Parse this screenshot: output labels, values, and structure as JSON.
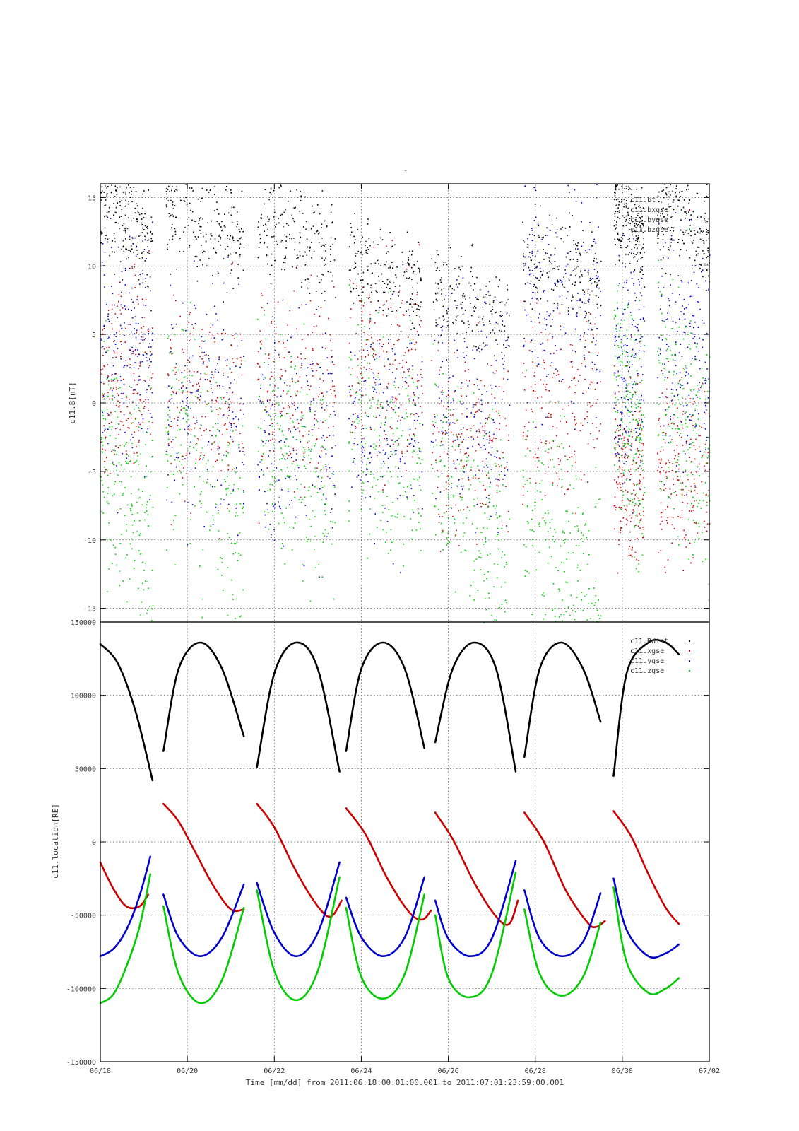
{
  "page": {
    "title_mark": "-",
    "xlabel": "Time [mm/dd]  from 2011:06:18:00:01:00.001  to  2011:07:01:23:59:00.001"
  },
  "colors": {
    "black": "#000000",
    "red": "#cc0000",
    "blue": "#0000cc",
    "green": "#00cc00",
    "grid": "#444444"
  },
  "chart_data": [
    {
      "type": "scatter",
      "ylabel": "c11.B[nT]",
      "xlim": [
        "06/18",
        "07/02"
      ],
      "ylim": [
        -16,
        16
      ],
      "yticks": [
        15,
        10,
        5,
        0,
        -5,
        -10,
        -15
      ],
      "xticks": [
        "06/18",
        "06/20",
        "06/22",
        "06/24",
        "06/26",
        "06/28",
        "06/30",
        "07/02"
      ],
      "grid": true,
      "legend_position": "top-right",
      "data_gaps_days": [
        [
          1.2,
          1.5
        ],
        [
          3.3,
          3.6
        ],
        [
          5.4,
          5.7
        ],
        [
          7.4,
          7.6
        ],
        [
          9.4,
          9.7
        ],
        [
          11.5,
          11.8
        ],
        [
          12.5,
          12.8
        ]
      ],
      "series": [
        {
          "name": "c11.bt",
          "color": "black",
          "center": [
            14,
            14,
            13,
            10,
            8,
            11,
            14
          ],
          "spread": 3
        },
        {
          "name": "c11.bxgse",
          "color": "red",
          "center": [
            2,
            0,
            1,
            3,
            -3,
            0,
            -5
          ],
          "spread": 6
        },
        {
          "name": "c11.bygse",
          "color": "blue",
          "center": [
            4,
            0,
            -2,
            -1,
            0,
            8,
            3
          ],
          "spread": 7
        },
        {
          "name": "c11.bzgse",
          "color": "green",
          "center": [
            -5,
            -4,
            -3,
            -2,
            -6,
            -9,
            0
          ],
          "spread": 7
        }
      ]
    },
    {
      "type": "line",
      "ylabel": "c11.location[RE]",
      "xlim": [
        "06/18",
        "07/02"
      ],
      "ylim": [
        -150000,
        150000
      ],
      "yticks": [
        150000,
        100000,
        50000,
        0,
        -50000,
        -100000,
        -150000
      ],
      "xticks": [
        "06/18",
        "06/20",
        "06/22",
        "06/24",
        "06/26",
        "06/28",
        "06/30",
        "07/02"
      ],
      "grid": true,
      "legend_position": "top-right",
      "series": [
        {
          "name": "c11.Rdist",
          "color": "black",
          "segments": [
            {
              "x": [
                0.0,
                0.4,
                0.8,
                1.2
              ],
              "y": [
                135000,
                122000,
                90000,
                42000
              ]
            },
            {
              "x": [
                1.45,
                1.8,
                2.3,
                2.8,
                3.3
              ],
              "y": [
                62000,
                118000,
                136000,
                118000,
                72000
              ]
            },
            {
              "x": [
                3.6,
                4.0,
                4.5,
                5.0,
                5.5
              ],
              "y": [
                51000,
                115000,
                136000,
                118000,
                48000
              ]
            },
            {
              "x": [
                5.65,
                6.0,
                6.5,
                7.0,
                7.45
              ],
              "y": [
                62000,
                118000,
                136000,
                118000,
                64000
              ]
            },
            {
              "x": [
                7.7,
                8.1,
                8.6,
                9.1,
                9.55
              ],
              "y": [
                68000,
                118000,
                136000,
                118000,
                48000
              ]
            },
            {
              "x": [
                9.75,
                10.1,
                10.6,
                11.1,
                11.5
              ],
              "y": [
                58000,
                118000,
                136000,
                118000,
                82000
              ]
            },
            {
              "x": [
                11.8,
                12.1,
                12.6,
                13.0,
                13.3
              ],
              "y": [
                45000,
                115000,
                136000,
                136000,
                128000
              ]
            }
          ]
        },
        {
          "name": "c11.xgse",
          "color": "red",
          "segments": [
            {
              "x": [
                0.0,
                0.3,
                0.6,
                0.9,
                1.1
              ],
              "y": [
                -14000,
                -32000,
                -44000,
                -44000,
                -36000
              ]
            },
            {
              "x": [
                1.45,
                1.8,
                2.2,
                2.6,
                3.0,
                3.3
              ],
              "y": [
                26000,
                14000,
                -8000,
                -30000,
                -46000,
                -46000
              ]
            },
            {
              "x": [
                3.6,
                4.0,
                4.5,
                5.0,
                5.3,
                5.55
              ],
              "y": [
                26000,
                10000,
                -20000,
                -44000,
                -51000,
                -40000
              ]
            },
            {
              "x": [
                5.65,
                6.1,
                6.6,
                7.1,
                7.4,
                7.6
              ],
              "y": [
                23000,
                5000,
                -25000,
                -48000,
                -53000,
                -47000
              ]
            },
            {
              "x": [
                7.7,
                8.1,
                8.6,
                9.1,
                9.4,
                9.6
              ],
              "y": [
                20000,
                2000,
                -28000,
                -51000,
                -56000,
                -40000
              ]
            },
            {
              "x": [
                9.75,
                10.2,
                10.7,
                11.2,
                11.4,
                11.6
              ],
              "y": [
                20000,
                0,
                -33000,
                -55000,
                -58000,
                -54000
              ]
            },
            {
              "x": [
                11.8,
                12.2,
                12.6,
                13.0,
                13.3
              ],
              "y": [
                21000,
                4000,
                -22000,
                -45000,
                -56000
              ]
            }
          ]
        },
        {
          "name": "c11.ygse",
          "color": "blue",
          "segments": [
            {
              "x": [
                0.0,
                0.3,
                0.6,
                0.9,
                1.15
              ],
              "y": [
                -78000,
                -73000,
                -60000,
                -37000,
                -10000
              ]
            },
            {
              "x": [
                1.45,
                1.8,
                2.3,
                2.8,
                3.3
              ],
              "y": [
                -36000,
                -65000,
                -78000,
                -65000,
                -29000
              ]
            },
            {
              "x": [
                3.6,
                4.0,
                4.5,
                5.0,
                5.5
              ],
              "y": [
                -28000,
                -62000,
                -78000,
                -62000,
                -14000
              ]
            },
            {
              "x": [
                5.65,
                6.0,
                6.5,
                7.0,
                7.45
              ],
              "y": [
                -38000,
                -65000,
                -78000,
                -65000,
                -24000
              ]
            },
            {
              "x": [
                7.7,
                8.0,
                8.5,
                9.0,
                9.55
              ],
              "y": [
                -40000,
                -66000,
                -78000,
                -66000,
                -13000
              ]
            },
            {
              "x": [
                9.75,
                10.1,
                10.6,
                11.1,
                11.5
              ],
              "y": [
                -33000,
                -66000,
                -78000,
                -68000,
                -35000
              ]
            },
            {
              "x": [
                11.8,
                12.1,
                12.6,
                13.0,
                13.3
              ],
              "y": [
                -25000,
                -60000,
                -78000,
                -76000,
                -70000
              ]
            }
          ]
        },
        {
          "name": "c11.zgse",
          "color": "green",
          "segments": [
            {
              "x": [
                0.0,
                0.3,
                0.6,
                0.9,
                1.15
              ],
              "y": [
                -110000,
                -104000,
                -85000,
                -58000,
                -22000
              ]
            },
            {
              "x": [
                1.45,
                1.8,
                2.3,
                2.8,
                3.3
              ],
              "y": [
                -44000,
                -90000,
                -110000,
                -94000,
                -45000
              ]
            },
            {
              "x": [
                3.6,
                4.0,
                4.5,
                5.0,
                5.5
              ],
              "y": [
                -33000,
                -88000,
                -108000,
                -88000,
                -24000
              ]
            },
            {
              "x": [
                5.65,
                6.0,
                6.5,
                7.0,
                7.45
              ],
              "y": [
                -45000,
                -92000,
                -107000,
                -90000,
                -36000
              ]
            },
            {
              "x": [
                7.7,
                8.0,
                8.5,
                9.0,
                9.55
              ],
              "y": [
                -50000,
                -93000,
                -106000,
                -90000,
                -21000
              ]
            },
            {
              "x": [
                9.75,
                10.1,
                10.6,
                11.1,
                11.5
              ],
              "y": [
                -46000,
                -90000,
                -105000,
                -92000,
                -55000
              ]
            },
            {
              "x": [
                11.8,
                12.1,
                12.6,
                13.0,
                13.3
              ],
              "y": [
                -31000,
                -82000,
                -103000,
                -100000,
                -93000
              ]
            }
          ]
        }
      ]
    }
  ]
}
